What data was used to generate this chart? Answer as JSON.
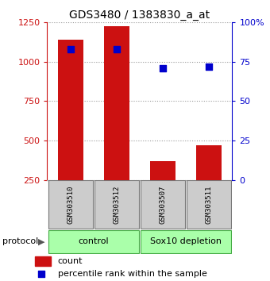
{
  "title": "GDS3480 / 1383830_a_at",
  "samples": [
    "GSM303510",
    "GSM303512",
    "GSM303507",
    "GSM303511"
  ],
  "bar_values": [
    1140,
    1225,
    370,
    470
  ],
  "percentile_values": [
    83,
    83,
    71,
    72
  ],
  "bar_color": "#cc1111",
  "percentile_color": "#0000cc",
  "left_ylim": [
    250,
    1250
  ],
  "left_yticks": [
    250,
    500,
    750,
    1000,
    1250
  ],
  "right_ylim": [
    0,
    100
  ],
  "right_yticks": [
    0,
    25,
    50,
    75,
    100
  ],
  "right_yticklabels": [
    "0",
    "25",
    "50",
    "75",
    "100%"
  ],
  "protocol_label": "protocol",
  "legend_count_label": "count",
  "legend_pct_label": "percentile rank within the sample",
  "left_axis_color": "#cc1111",
  "right_axis_color": "#0000cc",
  "bar_bottom": 250,
  "group_spans": [
    [
      0,
      2,
      "control"
    ],
    [
      2,
      4,
      "Sox10 depletion"
    ]
  ],
  "group_color": "#aaffaa",
  "sample_box_color": "#cccccc",
  "sample_box_edge": "#777777",
  "grid_color": "#999999",
  "bg_color": "#ffffff"
}
